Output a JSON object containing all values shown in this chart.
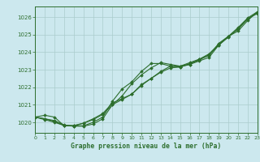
{
  "title": "Graphe pression niveau de la mer (hPa)",
  "background_color": "#cce8ee",
  "grid_color": "#aacccc",
  "line_color": "#2d6e2d",
  "ylim": [
    1019.4,
    1026.6
  ],
  "xlim": [
    0,
    23
  ],
  "xticks": [
    0,
    1,
    2,
    3,
    4,
    5,
    6,
    7,
    8,
    9,
    10,
    11,
    12,
    13,
    14,
    15,
    16,
    17,
    18,
    19,
    20,
    21,
    22,
    23
  ],
  "yticks": [
    1020,
    1021,
    1022,
    1023,
    1024,
    1025,
    1026
  ],
  "series": [
    [
      1020.3,
      1020.4,
      1020.3,
      1019.8,
      1019.8,
      1019.8,
      1020.0,
      1020.3,
      1021.2,
      1021.9,
      1022.3,
      1022.9,
      1023.35,
      1023.35,
      1023.2,
      1023.15,
      1023.3,
      1023.5,
      1023.7,
      1024.4,
      1024.9,
      1025.3,
      1025.9,
      1026.2
    ],
    [
      1020.3,
      1020.2,
      1020.1,
      1019.85,
      1019.78,
      1019.78,
      1019.9,
      1020.2,
      1021.0,
      1021.5,
      1022.2,
      1022.7,
      1023.1,
      1023.4,
      1023.3,
      1023.2,
      1023.3,
      1023.6,
      1023.8,
      1024.5,
      1024.9,
      1025.2,
      1025.8,
      1026.3
    ],
    [
      1020.3,
      1020.2,
      1020.05,
      1019.82,
      1019.82,
      1019.95,
      1020.15,
      1020.45,
      1021.0,
      1021.3,
      1021.6,
      1022.1,
      1022.5,
      1022.85,
      1023.1,
      1023.15,
      1023.35,
      1023.55,
      1023.85,
      1024.4,
      1024.85,
      1025.35,
      1025.9,
      1026.25
    ],
    [
      1020.3,
      1020.15,
      1020.0,
      1019.82,
      1019.78,
      1019.95,
      1020.2,
      1020.5,
      1021.1,
      1021.35,
      1021.6,
      1022.15,
      1022.5,
      1022.9,
      1023.2,
      1023.2,
      1023.4,
      1023.6,
      1023.9,
      1024.45,
      1024.9,
      1025.4,
      1025.95,
      1026.3
    ]
  ]
}
